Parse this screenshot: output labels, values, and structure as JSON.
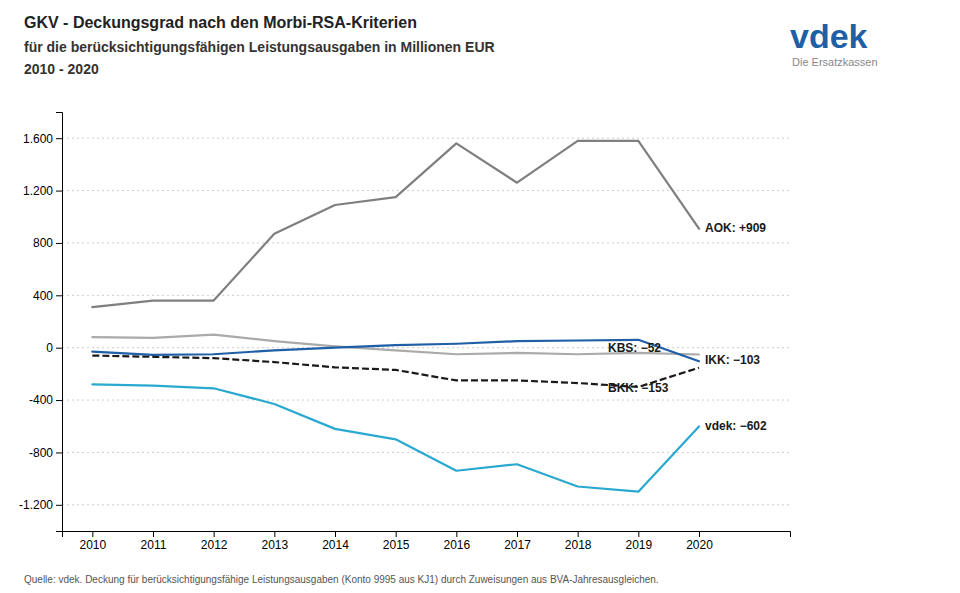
{
  "chart_data": {
    "type": "line",
    "title": "GKV - Deckungsgrad nach den Morbi-RSA-Kriterien",
    "subtitle": [
      "für die berücksichtigungsfähigen Leistungsausgaben in Millionen EUR",
      "2010 - 2020"
    ],
    "footnote": "Quelle: vdek.      Deckung für berücksichtigungsfähige Leistungsausgaben (Konto 9995 aus KJ1) durch Zuweisungen aus BVA-Jahresausgleichen.",
    "logo": [
      "vdek",
      "Die Ersatzkassen"
    ],
    "x": [
      2010,
      2011,
      2012,
      2013,
      2014,
      2015,
      2016,
      2017,
      2018,
      2019,
      2020
    ],
    "series": [
      {
        "name": "AOK",
        "color": "#7f7f7f",
        "line_style": "solid",
        "values": [
          310,
          360,
          360,
          870,
          1090,
          1150,
          1560,
          1260,
          1580,
          1580,
          909
        ]
      },
      {
        "name": "KBS",
        "color": "#aaaaaa",
        "line_style": "solid",
        "values": [
          80,
          75,
          100,
          50,
          10,
          -20,
          -50,
          -40,
          -50,
          -40,
          -52
        ]
      },
      {
        "name": "IKK",
        "color": "#1f5fa6",
        "line_style": "solid",
        "values": [
          -30,
          -55,
          -50,
          -20,
          0,
          20,
          30,
          50,
          55,
          60,
          -103
        ]
      },
      {
        "name": "BKK",
        "color": "#1a1a1a",
        "line_style": "dashed",
        "values": [
          -60,
          -70,
          -80,
          -110,
          -150,
          -170,
          -250,
          -250,
          -270,
          -300,
          -153
        ]
      },
      {
        "name": "vdek",
        "color": "#29a9d0",
        "line_style": "solid",
        "values": [
          -280,
          -290,
          -310,
          -430,
          -620,
          -700,
          -940,
          -890,
          -1060,
          -1100,
          -602
        ]
      }
    ],
    "annotations": [
      {
        "text": "AOK: +909",
        "x": 2020,
        "y": 909
      },
      {
        "text": "KBS: −52",
        "x": 2018.5,
        "y": -52
      },
      {
        "text": "IKK: −103",
        "x": 2020,
        "y": -103
      },
      {
        "text": "BKK: −153",
        "x": 2018.5,
        "y": -270
      },
      {
        "text": "vdek: −602",
        "x": 2020,
        "y": -602
      }
    ],
    "xlim": [
      2009.5,
      2021.5
    ],
    "xticks": [
      2010,
      2011,
      2012,
      2013,
      2014,
      2015,
      2016,
      2017,
      2018,
      2019,
      2020
    ],
    "ylim": [
      -1400,
      1800
    ],
    "yticks": [
      {
        "value": -1200,
        "label": "-1.200"
      },
      -800,
      -400,
      0,
      400,
      800,
      {
        "value": 1200,
        "label": "1.200"
      },
      {
        "value": 1600,
        "label": "1.600"
      }
    ],
    "grid": true
  }
}
